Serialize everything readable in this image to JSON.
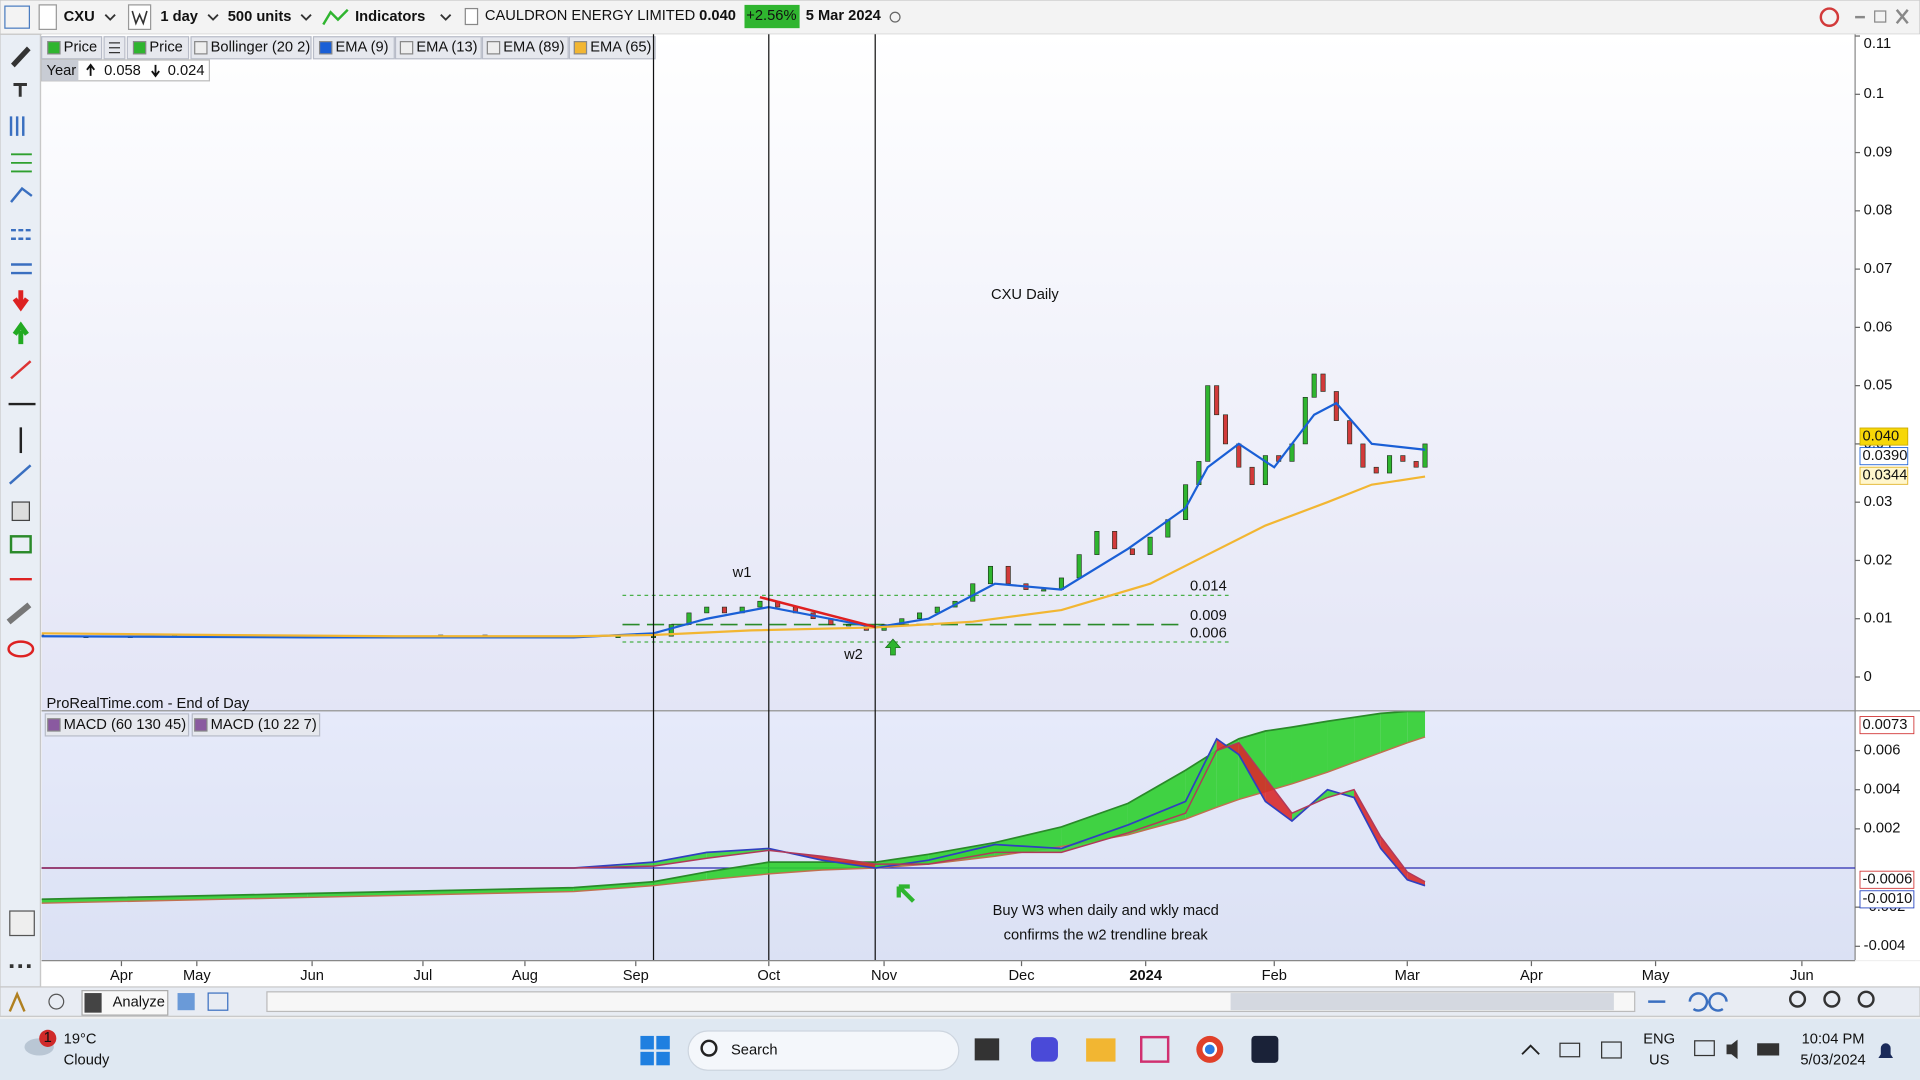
{
  "toolbar": {
    "symbol": "CXU",
    "interval": "1 day",
    "units": "500 units",
    "indicators": "Indicators",
    "name": "CAULDRON ENERGY LIMITED",
    "last": "0.040",
    "change": "+2.56%",
    "date": "5 Mar 2024"
  },
  "legend": [
    "Price",
    "Price",
    "Bollinger (20 2)",
    "EMA (9)",
    "EMA (13)",
    "EMA (89)",
    "EMA (65)"
  ],
  "period": {
    "label": "Year",
    "high": "0.058",
    "low": "0.024"
  },
  "source": "ProRealTime.com - End of Day",
  "annotations": {
    "w1": "w1",
    "w2": "w2",
    "note": [
      "Buy W3 when daily and wkly macd",
      "confirms the w2 trendline break"
    ]
  },
  "chart_data": [
    {
      "type": "candlestick",
      "title": "CXU Daily",
      "x": [
        0,
        10,
        20,
        30,
        40,
        50,
        60,
        70,
        80,
        90,
        100,
        110,
        120,
        130,
        138,
        142,
        146,
        150,
        154,
        158,
        162,
        166,
        170,
        174,
        178,
        182,
        186,
        190,
        194,
        198,
        202,
        206,
        210,
        214,
        218,
        222,
        226,
        230,
        234,
        238,
        242,
        246,
        250,
        254,
        258,
        261,
        263,
        265,
        267,
        270,
        273,
        276,
        279,
        282,
        285,
        287,
        289,
        292,
        295,
        298,
        301,
        304,
        307,
        310,
        312
      ],
      "open": [
        0.0072,
        0.007,
        0.0068,
        0.007,
        0.0072,
        0.0069,
        0.007,
        0.0071,
        0.0068,
        0.007,
        0.0072,
        0.007,
        0.0069,
        0.007,
        0.007,
        0.007,
        0.009,
        0.011,
        0.012,
        0.011,
        0.012,
        0.013,
        0.012,
        0.011,
        0.01,
        0.009,
        0.009,
        0.008,
        0.009,
        0.01,
        0.011,
        0.012,
        0.013,
        0.016,
        0.019,
        0.016,
        0.015,
        0.015,
        0.017,
        0.021,
        0.025,
        0.022,
        0.021,
        0.024,
        0.027,
        0.033,
        0.037,
        0.05,
        0.045,
        0.04,
        0.036,
        0.033,
        0.038,
        0.037,
        0.04,
        0.048,
        0.052,
        0.049,
        0.044,
        0.04,
        0.036,
        0.035,
        0.038,
        0.037,
        0.036
      ],
      "close": [
        0.007,
        0.0068,
        0.007,
        0.0072,
        0.0069,
        0.007,
        0.0071,
        0.0068,
        0.007,
        0.0072,
        0.007,
        0.0069,
        0.007,
        0.007,
        0.007,
        0.009,
        0.011,
        0.012,
        0.011,
        0.012,
        0.013,
        0.012,
        0.011,
        0.01,
        0.009,
        0.009,
        0.008,
        0.009,
        0.01,
        0.011,
        0.012,
        0.013,
        0.016,
        0.019,
        0.016,
        0.015,
        0.015,
        0.017,
        0.021,
        0.025,
        0.022,
        0.021,
        0.024,
        0.027,
        0.033,
        0.037,
        0.05,
        0.045,
        0.04,
        0.036,
        0.033,
        0.038,
        0.037,
        0.04,
        0.048,
        0.052,
        0.049,
        0.044,
        0.04,
        0.036,
        0.035,
        0.038,
        0.037,
        0.036,
        0.04
      ],
      "up_color": "#2fb52f",
      "down_color": "#d23a3a",
      "lines": [
        {
          "color": "#1a5fd6",
          "x": [
            0,
            60,
            120,
            138,
            150,
            164,
            188,
            200,
            215,
            230,
            245,
            258,
            263,
            270,
            278,
            287,
            292,
            300,
            312
          ],
          "values": [
            0.007,
            0.0068,
            0.0068,
            0.0075,
            0.01,
            0.012,
            0.0085,
            0.01,
            0.016,
            0.015,
            0.022,
            0.029,
            0.036,
            0.04,
            0.036,
            0.045,
            0.047,
            0.04,
            0.039
          ]
        },
        {
          "color": "#f2b632",
          "x": [
            0,
            40,
            80,
            120,
            138,
            160,
            188,
            210,
            230,
            250,
            263,
            276,
            290,
            300,
            312
          ],
          "values": [
            0.0075,
            0.0072,
            0.007,
            0.007,
            0.0072,
            0.008,
            0.0085,
            0.0095,
            0.0115,
            0.016,
            0.021,
            0.026,
            0.03,
            0.033,
            0.0344
          ]
        }
      ],
      "levels": [
        {
          "value": 0.014,
          "dash": "short"
        },
        {
          "value": 0.009,
          "dash": "long"
        },
        {
          "value": 0.006,
          "dash": "short"
        }
      ],
      "price_labels": [
        {
          "value": 0.04,
          "label": "0.040",
          "bg": "#f7d708",
          "color": "#111111"
        },
        {
          "value": 0.039,
          "label": "0.0390",
          "bg": "#ffffff",
          "color": "#1a5fd6"
        },
        {
          "value": 0.0344,
          "label": "0.0344",
          "bg": "#fff6cc",
          "color": "#e0b020"
        }
      ],
      "xlim": [
        0,
        409
      ],
      "xticks": [
        {
          "value": 18,
          "label": "Apr"
        },
        {
          "value": 35,
          "label": "May"
        },
        {
          "value": 61,
          "label": "Jun"
        },
        {
          "value": 86,
          "label": "Jul"
        },
        {
          "value": 109,
          "label": "Aug"
        },
        {
          "value": 134,
          "label": "Sep"
        },
        {
          "value": 164,
          "label": "Oct"
        },
        {
          "value": 190,
          "label": "Nov"
        },
        {
          "value": 221,
          "label": "Dec"
        },
        {
          "value": 249,
          "label": "2024"
        },
        {
          "value": 278,
          "label": "Feb"
        },
        {
          "value": 308,
          "label": "Mar"
        },
        {
          "value": 336,
          "label": "Apr"
        },
        {
          "value": 364,
          "label": "May"
        },
        {
          "value": 397,
          "label": "Jun"
        }
      ],
      "ylim": [
        -0.0057,
        0.1103
      ],
      "yticks": [
        0,
        0.01,
        0.02,
        0.03,
        0.04,
        0.05,
        0.06,
        0.07,
        0.08,
        0.09,
        0.1,
        0.11
      ],
      "grid": false
    },
    {
      "type": "macd",
      "legend": [
        "MACD (60 130 45)",
        "MACD (10 22 7)"
      ],
      "x": [
        0,
        60,
        120,
        138,
        150,
        164,
        176,
        188,
        200,
        215,
        230,
        245,
        258,
        265,
        270,
        276,
        282,
        290,
        296,
        302,
        308,
        312
      ],
      "bands": [
        {
          "macd": [
            -0.0016,
            -0.0013,
            -0.001,
            -0.0007,
            -0.0002,
            0.0003,
            0.0003,
            0.0003,
            0.0007,
            0.0013,
            0.0021,
            0.0033,
            0.005,
            0.006,
            0.0066,
            0.007,
            0.0072,
            0.0075,
            0.0077,
            0.0079,
            0.008,
            0.008
          ],
          "signal": [
            -0.0018,
            -0.0015,
            -0.0012,
            -0.0009,
            -0.0006,
            -0.0003,
            -0.0001,
            0.0,
            0.0002,
            0.0006,
            0.0011,
            0.0017,
            0.0025,
            0.0031,
            0.0035,
            0.0039,
            0.0043,
            0.0049,
            0.0054,
            0.0059,
            0.0064,
            0.0067
          ],
          "macd_color": "#2a8a2a",
          "signal_color": "#c07050",
          "up_fill": "#2fcf2f",
          "down_fill": "#d82a2a"
        },
        {
          "macd": [
            0,
            0,
            0,
            0.0003,
            0.0008,
            0.001,
            0.0004,
            0,
            0.0004,
            0.0012,
            0.001,
            0.0022,
            0.0034,
            0.0066,
            0.0058,
            0.0034,
            0.0024,
            0.004,
            0.0036,
            0.001,
            -0.0006,
            -0.0009
          ],
          "signal": [
            0,
            0,
            0,
            0.0001,
            0.0005,
            0.0009,
            0.0006,
            0.0002,
            0.0002,
            0.0008,
            0.0008,
            0.0018,
            0.0028,
            0.006,
            0.0064,
            0.0046,
            0.0028,
            0.0036,
            0.004,
            0.0016,
            -0.0002,
            -0.0007
          ],
          "macd_color": "#3040c0",
          "signal_color": "#b03a5a",
          "up_fill": "#3ad23a",
          "down_fill": "#d82a2a"
        }
      ],
      "zero_color": "#2a2ab0",
      "value_labels": [
        {
          "value": 0.0073,
          "label": "0.0073",
          "color": "#d03030"
        },
        {
          "value": -0.0006,
          "label": "-0.0006",
          "color": "#d03030"
        },
        {
          "value": -0.001,
          "label": "-0.0010",
          "color": "#2040c0"
        }
      ],
      "ylim": [
        -0.0047,
        0.008
      ],
      "yticks": [
        0.006,
        0.004,
        0.002,
        -0.002,
        -0.004
      ]
    }
  ],
  "bottom_bar": {
    "analyze": "Analyze"
  },
  "taskbar": {
    "temperature": "19°C",
    "weather": "Cloudy",
    "weather_badge": "1",
    "search": "Search",
    "language": "ENG",
    "region": "US",
    "time": "10:04 PM",
    "date": "5/03/2024"
  }
}
